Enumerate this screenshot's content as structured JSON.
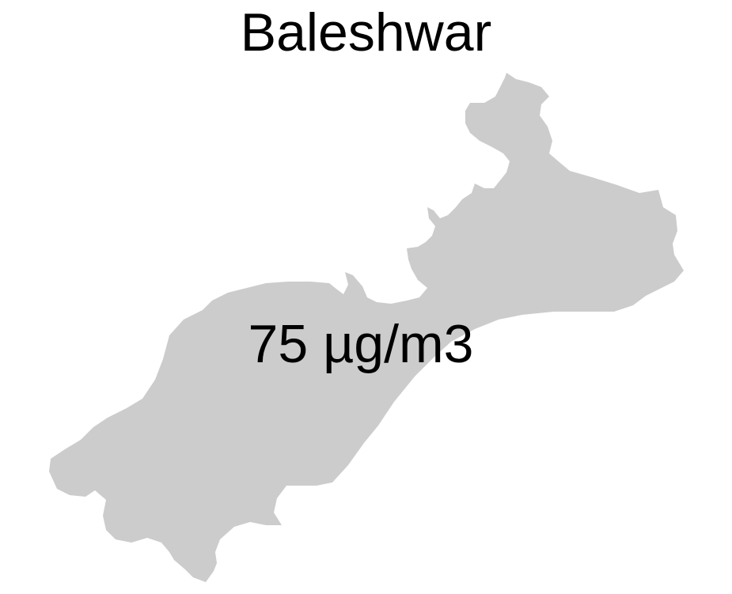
{
  "map": {
    "title": "Baleshwar",
    "value_label": "75 µg/m3",
    "region_fill": "#cccccc",
    "text_color": "#000000",
    "background": "#ffffff"
  }
}
